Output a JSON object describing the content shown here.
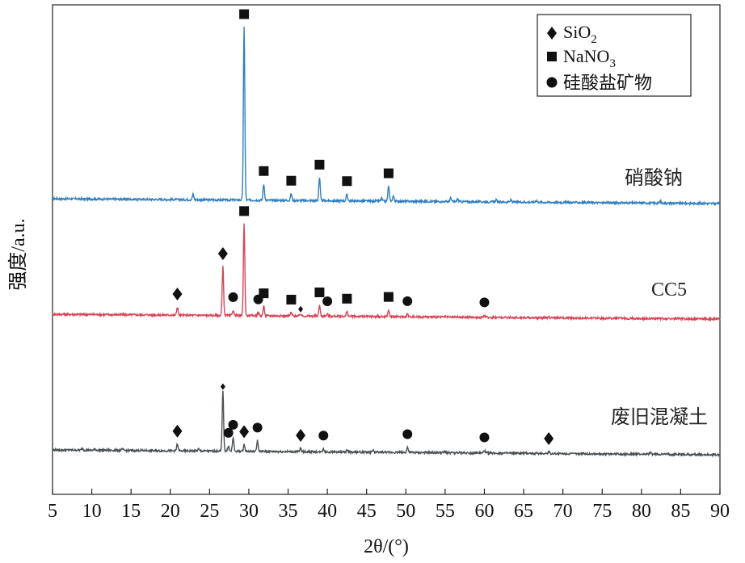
{
  "chart_data": {
    "type": "line",
    "xlabel": "2θ/(°)",
    "ylabel": "强度/a.u.",
    "xlim": [
      5,
      90
    ],
    "xticks": [
      5,
      10,
      15,
      20,
      25,
      30,
      35,
      40,
      45,
      50,
      55,
      60,
      65,
      70,
      75,
      80,
      85,
      90
    ],
    "xtick_labels": [
      "5",
      "10",
      "15",
      "20",
      "25",
      "30",
      "35",
      "40",
      "45",
      "50",
      "55",
      "60",
      "65",
      "70",
      "75",
      "80",
      "85",
      "90"
    ],
    "y_ticks_shown": false,
    "grid": false,
    "legend_position": "top-right",
    "legend": [
      {
        "marker": "diamond",
        "label": "SiO",
        "sub": "2"
      },
      {
        "marker": "square",
        "label": "NaNO",
        "sub": "3"
      },
      {
        "marker": "circle",
        "label": "硅酸盐矿物",
        "sub": ""
      }
    ],
    "series": [
      {
        "name": "硝酸钠",
        "color": "#2f7fc1",
        "baseline": 2.0,
        "peaks": [
          [
            22.9,
            0.08
          ],
          [
            29.4,
            2.55
          ],
          [
            31.9,
            0.24
          ],
          [
            35.4,
            0.1
          ],
          [
            39.0,
            0.34
          ],
          [
            42.5,
            0.1
          ],
          [
            46.9,
            0.04
          ],
          [
            47.8,
            0.22
          ],
          [
            48.4,
            0.08
          ],
          [
            55.7,
            0.05
          ],
          [
            56.6,
            0.04
          ],
          [
            61.5,
            0.03
          ],
          [
            63.4,
            0.03
          ],
          [
            66.6,
            0.03
          ],
          [
            82.4,
            0.03
          ]
        ],
        "markers": [
          {
            "x": 29.4,
            "type": "square"
          },
          {
            "x": 31.9,
            "type": "square"
          },
          {
            "x": 35.4,
            "type": "square"
          },
          {
            "x": 39.0,
            "type": "square"
          },
          {
            "x": 42.5,
            "type": "square"
          },
          {
            "x": 47.8,
            "type": "square"
          }
        ]
      },
      {
        "name": "CC5",
        "color": "#d94457",
        "baseline": 1.0,
        "peaks": [
          [
            20.9,
            0.12
          ],
          [
            26.7,
            0.72
          ],
          [
            28.0,
            0.08
          ],
          [
            29.4,
            1.35
          ],
          [
            31.2,
            0.05
          ],
          [
            31.9,
            0.14
          ],
          [
            35.4,
            0.05
          ],
          [
            36.6,
            0.03
          ],
          [
            39.0,
            0.16
          ],
          [
            40.0,
            0.03
          ],
          [
            42.5,
            0.07
          ],
          [
            47.8,
            0.1
          ],
          [
            50.2,
            0.04
          ],
          [
            60.0,
            0.03
          ],
          [
            68.2,
            0.02
          ]
        ],
        "markers": [
          {
            "x": 20.9,
            "type": "diamond"
          },
          {
            "x": 26.7,
            "type": "diamond"
          },
          {
            "x": 28.0,
            "type": "circle"
          },
          {
            "x": 29.4,
            "type": "square"
          },
          {
            "x": 31.2,
            "type": "circle"
          },
          {
            "x": 31.9,
            "type": "square"
          },
          {
            "x": 35.4,
            "type": "square"
          },
          {
            "x": 36.6,
            "type": "diamond-small"
          },
          {
            "x": 39.0,
            "type": "square"
          },
          {
            "x": 40.0,
            "type": "circle"
          },
          {
            "x": 42.5,
            "type": "square"
          },
          {
            "x": 47.8,
            "type": "square"
          },
          {
            "x": 50.2,
            "type": "circle"
          },
          {
            "x": 60.0,
            "type": "circle"
          }
        ]
      },
      {
        "name": "废旧混凝土",
        "color": "#4a4f52",
        "baseline": 0.0,
        "peaks": [
          [
            8.8,
            0.03
          ],
          [
            10.4,
            0.02
          ],
          [
            13.9,
            0.02
          ],
          [
            20.9,
            0.1
          ],
          [
            23.6,
            0.03
          ],
          [
            26.7,
            0.88
          ],
          [
            27.4,
            0.08
          ],
          [
            28.0,
            0.2
          ],
          [
            29.4,
            0.1
          ],
          [
            31.1,
            0.16
          ],
          [
            36.6,
            0.05
          ],
          [
            39.5,
            0.05
          ],
          [
            42.5,
            0.03
          ],
          [
            45.8,
            0.03
          ],
          [
            50.2,
            0.08
          ],
          [
            55.0,
            0.02
          ],
          [
            60.0,
            0.04
          ],
          [
            68.2,
            0.03
          ],
          [
            81.2,
            0.02
          ]
        ],
        "markers": [
          {
            "x": 20.9,
            "type": "diamond"
          },
          {
            "x": 26.7,
            "type": "diamond-small"
          },
          {
            "x": 27.4,
            "type": "circle"
          },
          {
            "x": 28.0,
            "type": "circle"
          },
          {
            "x": 29.4,
            "type": "diamond"
          },
          {
            "x": 31.1,
            "type": "circle"
          },
          {
            "x": 36.6,
            "type": "diamond"
          },
          {
            "x": 39.5,
            "type": "circle"
          },
          {
            "x": 50.2,
            "type": "circle"
          },
          {
            "x": 60.0,
            "type": "circle"
          },
          {
            "x": 68.2,
            "type": "diamond"
          }
        ]
      }
    ]
  }
}
